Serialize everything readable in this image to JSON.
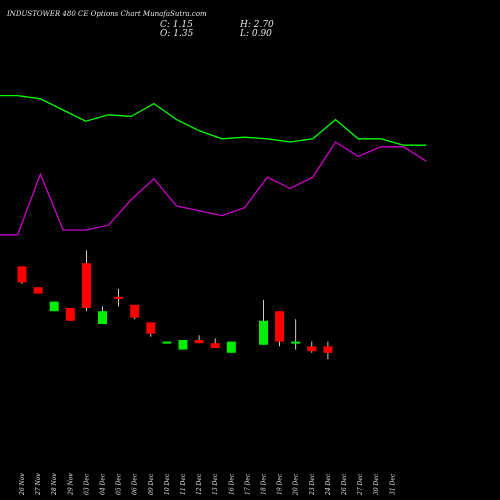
{
  "header": {
    "title": "INDUSTOWER 480  CE Options  Chart MunafaSutra.com",
    "close_label": "C: 1.15",
    "open_label": "O: 1.35",
    "high_label": "H: 2.70",
    "low_label": "L: 0.90"
  },
  "colors": {
    "background": "#000000",
    "up": "#00ee00",
    "down": "#ff0000",
    "line_upper": "#00ff00",
    "line_lower": "#cc00cc",
    "wick": "#ffffff",
    "text": "#e8e8e8"
  },
  "chart_data": {
    "type": "candlestick",
    "categories": [
      "26 Nov",
      "27 Nov",
      "28 Nov",
      "29 Nov",
      "03 Dec",
      "04 Dec",
      "05 Dec",
      "06 Dec",
      "09 Dec",
      "10 Dec",
      "11 Dec",
      "12 Dec",
      "13 Dec",
      "16 Dec",
      "17 Dec",
      "18 Dec",
      "19 Dec",
      "20 Dec",
      "23 Dec",
      "24 Dec",
      "26 Dec",
      "27 Dec",
      "30 Dec",
      "31 Dec"
    ],
    "candles": [
      {
        "open": 9.6,
        "high": 9.6,
        "low": 8.5,
        "close": 8.6,
        "dir": "down"
      },
      {
        "open": 8.3,
        "high": 8.3,
        "low": 7.9,
        "close": 7.9,
        "dir": "down"
      },
      {
        "open": 6.8,
        "high": 7.4,
        "low": 6.8,
        "close": 7.4,
        "dir": "up"
      },
      {
        "open": 7.0,
        "high": 7.0,
        "low": 6.2,
        "close": 6.2,
        "dir": "down"
      },
      {
        "open": 9.8,
        "high": 10.6,
        "low": 6.8,
        "close": 7.0,
        "dir": "down"
      },
      {
        "open": 6.0,
        "high": 7.1,
        "low": 6.0,
        "close": 6.8,
        "dir": "up"
      },
      {
        "open": 7.7,
        "high": 8.2,
        "low": 7.1,
        "close": 7.6,
        "dir": "down"
      },
      {
        "open": 7.2,
        "high": 7.2,
        "low": 6.3,
        "close": 6.4,
        "dir": "down"
      },
      {
        "open": 6.1,
        "high": 6.1,
        "low": 5.2,
        "close": 5.4,
        "dir": "down"
      },
      {
        "open": 4.9,
        "high": 4.9,
        "low": 4.9,
        "close": 4.9,
        "dir": "up"
      },
      {
        "open": 4.4,
        "high": 5.0,
        "low": 4.4,
        "close": 5.0,
        "dir": "up"
      },
      {
        "open": 5.0,
        "high": 5.3,
        "low": 4.8,
        "close": 4.8,
        "dir": "down"
      },
      {
        "open": 4.8,
        "high": 5.1,
        "low": 4.5,
        "close": 4.5,
        "dir": "down"
      },
      {
        "open": 4.2,
        "high": 4.9,
        "low": 4.2,
        "close": 4.9,
        "dir": "up"
      },
      {
        "open": 4.7,
        "high": 7.5,
        "low": 4.7,
        "close": 6.2,
        "dir": "up"
      },
      {
        "open": 6.8,
        "high": 6.8,
        "low": 4.6,
        "close": 4.9,
        "dir": "down"
      },
      {
        "open": 4.9,
        "high": 6.3,
        "low": 4.4,
        "close": 4.9,
        "dir": "up"
      },
      {
        "open": 4.6,
        "high": 4.9,
        "low": 4.2,
        "close": 4.3,
        "dir": "down"
      },
      {
        "open": 4.6,
        "high": 4.9,
        "low": 3.8,
        "close": 4.2,
        "dir": "down"
      }
    ],
    "candle_slots": [
      0,
      1,
      2,
      3,
      4,
      5,
      6,
      7,
      8,
      9,
      10,
      11,
      12,
      13,
      15,
      16,
      17,
      18,
      19
    ],
    "upper_line": [
      9.9,
      9.9,
      9.7,
      9.0,
      8.3,
      8.7,
      8.6,
      9.4,
      8.4,
      7.7,
      7.2,
      7.3,
      7.2,
      7.0,
      7.2,
      8.4,
      7.2,
      7.2,
      6.8,
      6.8
    ],
    "lower_line": [
      1.2,
      1.2,
      5.0,
      1.5,
      1.5,
      1.8,
      3.4,
      4.7,
      3.0,
      2.7,
      2.4,
      2.9,
      4.8,
      4.1,
      4.8,
      7.0,
      6.1,
      6.7,
      6.7,
      5.8
    ],
    "line_x": [
      0,
      1,
      2,
      3,
      4,
      5,
      6,
      7,
      8,
      9,
      10,
      11,
      12,
      13,
      14,
      15,
      16,
      17,
      18,
      19
    ],
    "ylim": [
      0,
      12
    ]
  }
}
